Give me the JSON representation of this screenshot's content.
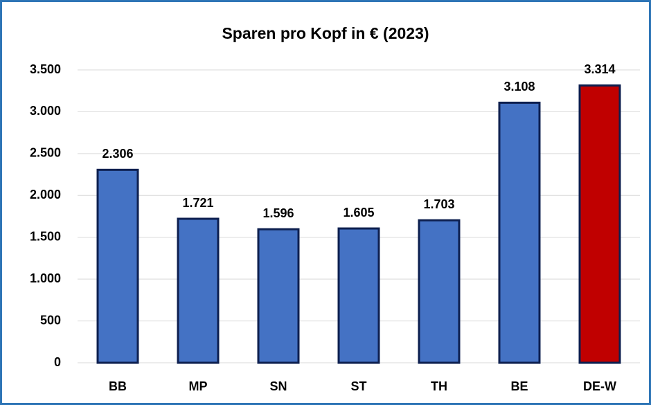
{
  "chart_data": {
    "type": "bar",
    "title": "Sparen pro Kopf in € (2023)",
    "categories": [
      "BB",
      "MP",
      "SN",
      "ST",
      "TH",
      "BE",
      "DE-W"
    ],
    "values": [
      2306,
      1721,
      1596,
      1605,
      1703,
      3108,
      3314
    ],
    "value_labels": [
      "2.306",
      "1.721",
      "1.596",
      "1.605",
      "1.703",
      "3.108",
      "3.314"
    ],
    "colors": [
      "#4472c4",
      "#4472c4",
      "#4472c4",
      "#4472c4",
      "#4472c4",
      "#4472c4",
      "#c00000"
    ],
    "ylim": [
      0,
      3500
    ],
    "yticks": [
      0,
      500,
      {
        "value": 1000,
        "label": "1.000"
      },
      {
        "value": 1500,
        "label": "1.500"
      },
      {
        "value": 2000,
        "label": "2.000"
      },
      {
        "value": 2500,
        "label": "2.500"
      },
      {
        "value": 3000,
        "label": "3.000"
      },
      {
        "value": 3500,
        "label": "3.500"
      }
    ],
    "grid": true
  }
}
